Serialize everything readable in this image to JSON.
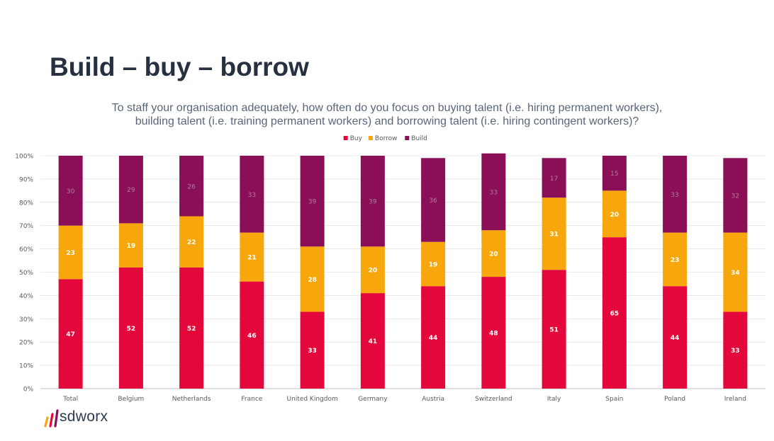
{
  "slide": {
    "title": "Build – buy – borrow",
    "logo_text": "sdworx"
  },
  "colors": {
    "buy": "#e3073c",
    "borrow": "#f7a70c",
    "build": "#8a0f57",
    "title": "#263040",
    "axis": "#595959",
    "grid": "#d9d9d9"
  },
  "chart_data": {
    "type": "bar",
    "stacked": true,
    "title_lines": [
      "To staff your organisation adequately, how often do you focus on buying talent (i.e. hiring permanent workers),",
      "building talent (i.e. training permanent workers) and borrowing talent (i.e. hiring contingent workers)?"
    ],
    "categories": [
      "Total",
      "Belgium",
      "Netherlands",
      "France",
      "United Kingdom",
      "Germany",
      "Austria",
      "Switzerland",
      "Italy",
      "Spain",
      "Poland",
      "Ireland"
    ],
    "series": [
      {
        "name": "Buy",
        "color": "#e3073c",
        "values": [
          47,
          52,
          52,
          46,
          33,
          41,
          44,
          48,
          51,
          65,
          44,
          33
        ]
      },
      {
        "name": "Borrow",
        "color": "#f7a70c",
        "values": [
          23,
          19,
          22,
          21,
          28,
          20,
          19,
          20,
          31,
          20,
          23,
          34
        ]
      },
      {
        "name": "Build",
        "color": "#8a0f57",
        "values": [
          30,
          29,
          26,
          33,
          39,
          39,
          36,
          33,
          17,
          15,
          33,
          32
        ]
      }
    ],
    "y_ticks": [
      "0%",
      "10%",
      "20%",
      "30%",
      "40%",
      "50%",
      "60%",
      "70%",
      "80%",
      "90%",
      "100%"
    ],
    "ylim": [
      0,
      100
    ],
    "legend_position": "top-center",
    "grid": true,
    "xlabel": "",
    "ylabel": ""
  }
}
